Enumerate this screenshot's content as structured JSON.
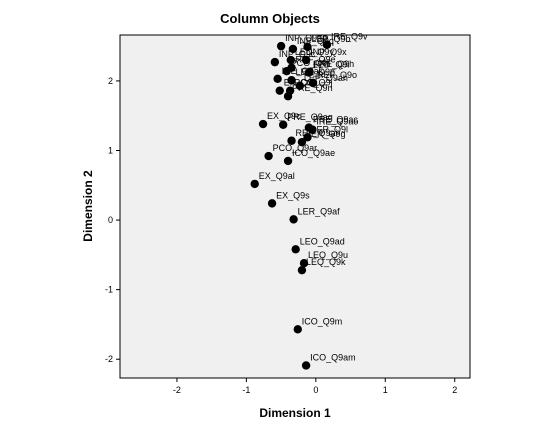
{
  "chart_data": {
    "type": "scatter",
    "title": "Column Objects",
    "x_label": "Dimension 1",
    "y_label": "Dimension 2",
    "color": "#000000",
    "labels": [
      "INP_Q9ap",
      "INP_Q9q",
      "LEP_Q9b",
      "IRE_Q9v",
      "INP_Q9c",
      "LED_Q9y",
      "INP_Q9x",
      "PCO_Q9r",
      "REF_Q9e",
      "PRE_Q9h",
      "LED_Q9i",
      "IRE_Q9ak",
      "LED_Q9p",
      "REF_Q9o",
      "EX_Q9z",
      "PCO_Q9j",
      "LEP_Q9ah",
      "PRE_Q9n",
      "EX_Q9c",
      "PRE_Q9ac",
      "PRE_Q9ag",
      "IRE_Q9ao",
      "LER_Q9l",
      "REF_Q9ai",
      "LER_Q9g",
      "PCO_Q9ar",
      "ICO_Q9ae",
      "EX_Q9al",
      "EX_Q9s",
      "LER_Q9af",
      "LEO_Q9ad",
      "LEQ_Q9u",
      "LEQ_Q9k",
      "ICO_Q9m",
      "ICO_Q9am"
    ],
    "x": [
      -0.5,
      -0.33,
      -0.12,
      0.16,
      -0.59,
      -0.36,
      -0.14,
      -0.42,
      -0.35,
      -0.09,
      -0.1,
      -0.55,
      -0.35,
      -0.04,
      -0.52,
      -0.37,
      -0.23,
      -0.4,
      -0.76,
      -0.1,
      -0.47,
      -0.05,
      -0.12,
      -0.35,
      -0.2,
      -0.68,
      -0.4,
      -0.88,
      -0.63,
      -0.32,
      -0.29,
      -0.17,
      -0.2,
      -0.26,
      -0.14
    ],
    "y": [
      2.5,
      2.46,
      2.49,
      2.52,
      2.27,
      2.3,
      2.3,
      2.14,
      2.19,
      2.13,
      2.12,
      2.03,
      2.01,
      1.97,
      1.86,
      1.86,
      1.93,
      1.78,
      1.38,
      1.33,
      1.37,
      1.3,
      1.19,
      1.14,
      1.12,
      0.92,
      0.85,
      0.52,
      0.24,
      0.01,
      -0.42,
      -0.62,
      -0.72,
      -1.57,
      -2.09
    ],
    "xlim": [
      -2.82,
      2.22
    ],
    "ylim": [
      -2.27,
      2.66
    ],
    "xticks": [
      -2,
      -1,
      0,
      1,
      2
    ],
    "yticks": [
      -2,
      -1,
      0,
      1,
      2
    ]
  }
}
